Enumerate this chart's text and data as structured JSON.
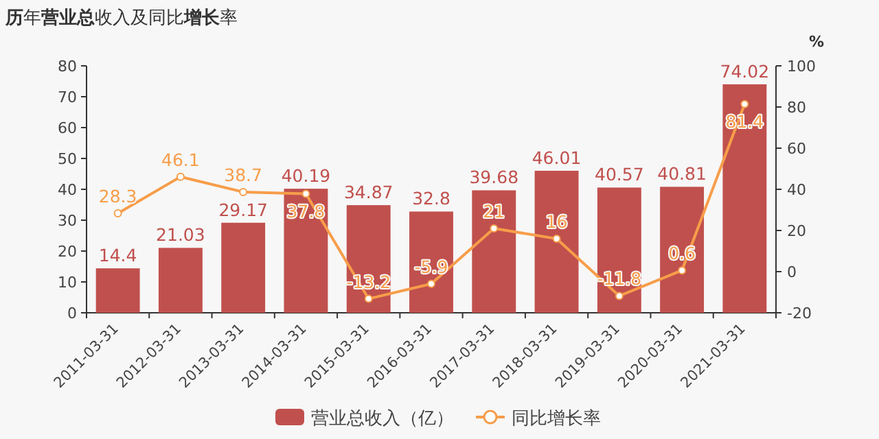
{
  "chart_data": {
    "type": "bar",
    "title": "**历**年**营业总**收入及同比**增长**率",
    "categories": [
      "2011-03-31",
      "2012-03-31",
      "2013-03-31",
      "2014-03-31",
      "2015-03-31",
      "2016-03-31",
      "2017-03-31",
      "2018-03-31",
      "2019-03-31",
      "2020-03-31",
      "2021-03-31"
    ],
    "series": [
      {
        "name": "营业总收入（亿）",
        "color": "#c0504d",
        "values": [
          14.4,
          21.03,
          29.17,
          40.19,
          34.87,
          32.8,
          39.68,
          46.01,
          40.57,
          40.81,
          74.02
        ]
      },
      {
        "name": "同比增长率",
        "type": "line",
        "axis": "y2",
        "color": "#f79d4a",
        "marker": "circle",
        "values": [
          28.3,
          46.1,
          38.7,
          37.8,
          -13.2,
          -5.9,
          21,
          16,
          -11.8,
          0.6,
          81.4
        ]
      }
    ],
    "ylim": [
      0,
      80
    ],
    "yticks": [
      0,
      10,
      20,
      30,
      40,
      50,
      60,
      70,
      80
    ],
    "y2lim": [
      -20,
      100
    ],
    "y2ticks": [
      -20,
      0,
      20,
      40,
      60,
      80,
      100
    ],
    "y2label": "%",
    "data_labels": true,
    "legend": "bottom",
    "grid": false
  }
}
